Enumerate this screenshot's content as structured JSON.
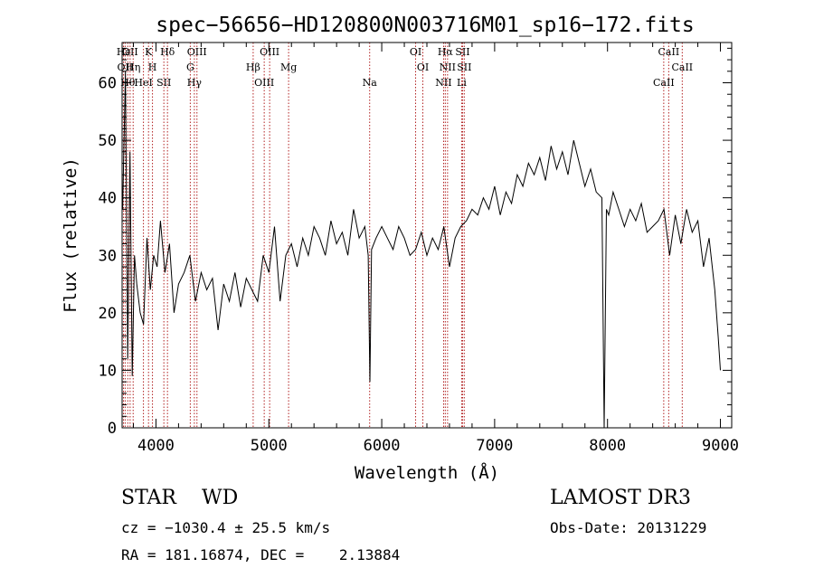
{
  "chart_data": {
    "type": "line",
    "title": "spec−56656−HD120800N003716M01_sp16−172.fits",
    "xlabel": "Wavelength (Å)",
    "ylabel": "Flux (relative)",
    "xlim": [
      3700,
      9100
    ],
    "ylim": [
      0,
      67
    ],
    "xticks": [
      4000,
      5000,
      6000,
      7000,
      8000,
      9000
    ],
    "yticks": [
      0,
      10,
      20,
      30,
      40,
      50,
      60
    ],
    "grid": false,
    "series": [
      {
        "color": "#000000",
        "x": [
          3705,
          3730,
          3750,
          3770,
          3790,
          3810,
          3830,
          3860,
          3890,
          3920,
          3950,
          3980,
          4010,
          4040,
          4080,
          4120,
          4160,
          4200,
          4250,
          4300,
          4350,
          4400,
          4450,
          4500,
          4550,
          4600,
          4650,
          4700,
          4750,
          4800,
          4850,
          4900,
          4950,
          5000,
          5050,
          5100,
          5150,
          5200,
          5250,
          5300,
          5350,
          5400,
          5450,
          5500,
          5550,
          5600,
          5650,
          5700,
          5750,
          5800,
          5850,
          5880,
          5895,
          5910,
          5950,
          6000,
          6050,
          6100,
          6150,
          6200,
          6250,
          6300,
          6350,
          6400,
          6450,
          6500,
          6550,
          6600,
          6650,
          6700,
          6750,
          6800,
          6850,
          6900,
          6950,
          7000,
          7050,
          7100,
          7150,
          7200,
          7250,
          7300,
          7350,
          7400,
          7450,
          7500,
          7550,
          7600,
          7650,
          7700,
          7750,
          7800,
          7850,
          7900,
          7950,
          7970,
          7990,
          8010,
          8050,
          8100,
          8150,
          8200,
          8250,
          8300,
          8350,
          8400,
          8450,
          8500,
          8550,
          8600,
          8650,
          8700,
          8750,
          8800,
          8850,
          8900,
          8950,
          8980,
          9000
        ],
        "y": [
          38,
          62,
          12,
          48,
          9,
          30,
          25,
          20,
          18,
          33,
          24,
          30,
          28,
          36,
          27,
          32,
          20,
          25,
          27,
          30,
          22,
          27,
          24,
          26,
          17,
          25,
          22,
          27,
          21,
          26,
          24,
          22,
          30,
          27,
          35,
          22,
          30,
          32,
          28,
          33,
          30,
          35,
          33,
          30,
          36,
          32,
          34,
          30,
          38,
          33,
          35,
          30,
          8,
          31,
          33,
          35,
          33,
          31,
          35,
          33,
          30,
          31,
          34,
          30,
          33,
          31,
          35,
          28,
          33,
          35,
          36,
          38,
          37,
          40,
          38,
          42,
          37,
          41,
          39,
          44,
          42,
          46,
          44,
          47,
          43,
          49,
          45,
          48,
          44,
          50,
          46,
          42,
          45,
          41,
          40,
          0,
          38,
          37,
          41,
          38,
          35,
          38,
          36,
          39,
          34,
          35,
          36,
          38,
          30,
          37,
          32,
          38,
          34,
          36,
          28,
          33,
          24,
          16,
          10
        ]
      }
    ],
    "lines": [
      {
        "x": 3712,
        "label": "Hε"
      },
      {
        "x": 3727,
        "label": "OII"
      },
      {
        "x": 3750,
        "label": "Hθ"
      },
      {
        "x": 3771,
        "label": "OII"
      },
      {
        "x": 3798,
        "label": "Hη"
      },
      {
        "x": 3889,
        "label": "HeI"
      },
      {
        "x": 3934,
        "label": "K"
      },
      {
        "x": 3969,
        "label": "H"
      },
      {
        "x": 4070,
        "label": "SII"
      },
      {
        "x": 4102,
        "label": "Hδ"
      },
      {
        "x": 4304,
        "label": "G"
      },
      {
        "x": 4340,
        "label": "Hγ"
      },
      {
        "x": 4363,
        "label": "OIII"
      },
      {
        "x": 4861,
        "label": "Hβ"
      },
      {
        "x": 4959,
        "label": "OIII"
      },
      {
        "x": 5007,
        "label": "OIII"
      },
      {
        "x": 5175,
        "label": "Mg"
      },
      {
        "x": 5893,
        "label": "Na"
      },
      {
        "x": 6300,
        "label": "OI"
      },
      {
        "x": 6364,
        "label": "OI"
      },
      {
        "x": 6548,
        "label": "NII"
      },
      {
        "x": 6563,
        "label": "Hα"
      },
      {
        "x": 6583,
        "label": "NII"
      },
      {
        "x": 6708,
        "label": "Li"
      },
      {
        "x": 6716,
        "label": "SII"
      },
      {
        "x": 6731,
        "label": "SII"
      },
      {
        "x": 8498,
        "label": "CaII"
      },
      {
        "x": 8542,
        "label": "CaII"
      },
      {
        "x": 8662,
        "label": "CaII"
      }
    ]
  },
  "info": {
    "class_text": "STAR    WD",
    "survey": "LAMOST DR3",
    "cz": "cz = −1030.4 ± 25.5 km/s",
    "obs_date": "Obs-Date: 20131229",
    "radec": "RA = 181.16874, DEC =    2.13884"
  }
}
